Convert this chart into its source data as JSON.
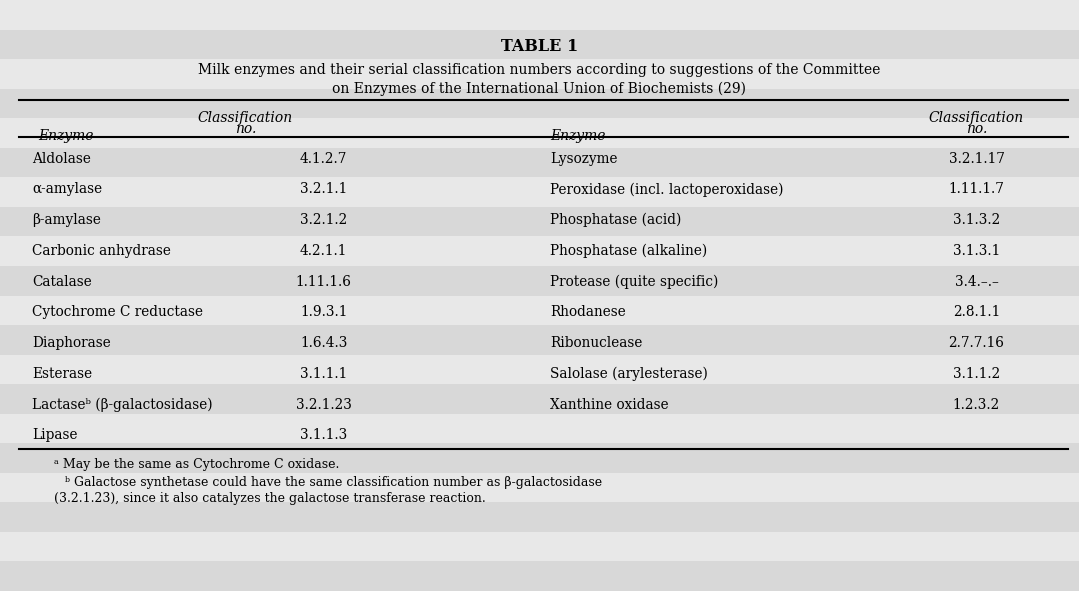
{
  "title": "TABLE 1",
  "subtitle_line1": "Milk enzymes and their serial classification numbers according to suggestions of the Committee",
  "subtitle_line2": "on Enzymes of the International Union of Biochemists (29)",
  "left_enzymes": [
    [
      "Aldolase",
      "4.1.2.7"
    ],
    [
      "α-amylase",
      "3.2.1.1"
    ],
    [
      "β-amylase",
      "3.2.1.2"
    ],
    [
      "Carbonic anhydrase",
      "4.2.1.1"
    ],
    [
      "Catalase",
      "1.11.1.6"
    ],
    [
      "Cytochrome C reductase",
      "1.9.3.1"
    ],
    [
      "Diaphorase",
      "1.6.4.3"
    ],
    [
      "Esterase",
      "3.1.1.1"
    ],
    [
      "Lactaseᵇ (β-galactosidase)",
      "3.2.1.23"
    ],
    [
      "Lipase",
      "3.1.1.3"
    ]
  ],
  "right_enzymes": [
    [
      "Lysozyme",
      "3.2.1.17"
    ],
    [
      "Peroxidase (incl. lactoperoxidase)",
      "1.11.1.7"
    ],
    [
      "Phosphatase (acid)",
      "3.1.3.2"
    ],
    [
      "Phosphatase (alkaline)",
      "3.1.3.1"
    ],
    [
      "Protease (quite specific)",
      "3.4.–.–"
    ],
    [
      "Rhodanese",
      "2.8.1.1"
    ],
    [
      "Ribonuclease",
      "2.7.7.16"
    ],
    [
      "Salolase (arylesterase)",
      "3.1.1.2"
    ],
    [
      "Xanthine oxidase",
      "1.2.3.2"
    ],
    [
      "",
      ""
    ]
  ],
  "footnote_a": "ᵃ May be the same as Cytochrome C oxidase.",
  "footnote_b": "ᵇ Galactose synthetase could have the same classification number as β-galactosidase",
  "footnote_b2": "(3.2.1.23), since it also catalyzes the galactose transferase reaction.",
  "bg_color": "#e8e8e8",
  "stripe_color": "#d8d8d8",
  "text_color": "#000000",
  "n_rows": 10,
  "n_stripe_rows": 20
}
